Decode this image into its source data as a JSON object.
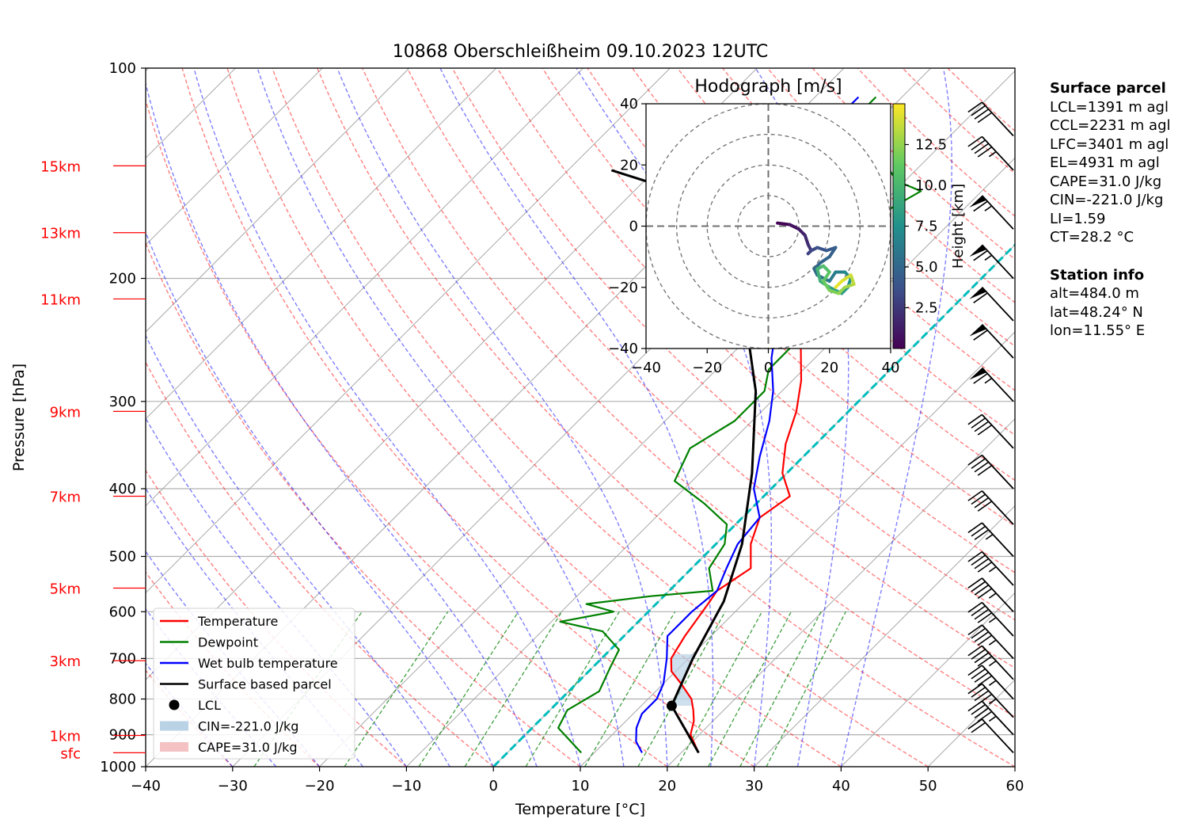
{
  "chart_data": [
    {
      "type": "line",
      "subtype": "skew-T log-p diagram",
      "title": "10868 Oberschleißheim 09.10.2023 12UTC",
      "xlabel": "Temperature [°C]",
      "ylabel": "Pressure [hPa]",
      "xlim": [
        -40,
        60
      ],
      "ylim": [
        1000,
        100
      ],
      "y_scale": "log",
      "x_ticks": [
        "−40",
        "−30",
        "−20",
        "−10",
        "0",
        "10",
        "20",
        "30",
        "40",
        "50",
        "60"
      ],
      "y_ticks": [
        "100",
        "200",
        "300",
        "400",
        "500",
        "600",
        "700",
        "800",
        "900",
        "1000"
      ],
      "height_labels": [
        {
          "label": "15km",
          "p": 138
        },
        {
          "label": "13km",
          "p": 172
        },
        {
          "label": "11km",
          "p": 214
        },
        {
          "label": "9km",
          "p": 310
        },
        {
          "label": "7km",
          "p": 410
        },
        {
          "label": "5km",
          "p": 555
        },
        {
          "label": "3km",
          "p": 705
        },
        {
          "label": "1km",
          "p": 902
        },
        {
          "label": "sfc",
          "p": 955
        }
      ],
      "legend": {
        "placement": "lower-left",
        "entries": [
          {
            "label": "Temperature",
            "kind": "line",
            "color": "#ff0000"
          },
          {
            "label": "Dewpoint",
            "kind": "line",
            "color": "#008000"
          },
          {
            "label": "Wet bulb temperature",
            "kind": "line",
            "color": "#0000ff"
          },
          {
            "label": "Surface based parcel",
            "kind": "line",
            "color": "#000000"
          },
          {
            "label": "LCL",
            "kind": "marker",
            "color": "#000000"
          },
          {
            "label": "CIN=-221.0 J/kg",
            "kind": "patch",
            "color": "#b9d2e6"
          },
          {
            "label": "CAPE=31.0 J/kg",
            "kind": "patch",
            "color": "#f4c2c2"
          }
        ]
      },
      "series": [
        {
          "name": "Temperature",
          "color": "#ff0000",
          "points": [
            [
              22,
              955
            ],
            [
              19,
              900
            ],
            [
              17.8,
              860
            ],
            [
              16.5,
              830
            ],
            [
              15,
              800
            ],
            [
              12,
              760
            ],
            [
              9.5,
              730
            ],
            [
              8,
              700
            ],
            [
              7,
              650
            ],
            [
              5.9,
              580
            ],
            [
              5.5,
              560
            ],
            [
              6.8,
              520
            ],
            [
              4,
              480
            ],
            [
              2,
              440
            ],
            [
              3,
              410
            ],
            [
              -0.5,
              380
            ],
            [
              -3.5,
              345
            ],
            [
              -6,
              310
            ],
            [
              -9,
              280
            ],
            [
              -13,
              250
            ],
            [
              -17,
              225
            ],
            [
              -21,
              205
            ],
            [
              -25,
              185
            ],
            [
              -29,
              170
            ],
            [
              -31,
              160
            ],
            [
              -33,
              148
            ],
            [
              -34,
              140
            ]
          ]
        },
        {
          "name": "Dewpoint",
          "color": "#008000",
          "points": [
            [
              8.5,
              955
            ],
            [
              6,
              920
            ],
            [
              3,
              880
            ],
            [
              2,
              830
            ],
            [
              3.5,
              780
            ],
            [
              2,
              720
            ],
            [
              1,
              680
            ],
            [
              -3,
              640
            ],
            [
              -9,
              620
            ],
            [
              -4,
              600
            ],
            [
              -8,
              585
            ],
            [
              -1.5,
              570
            ],
            [
              5,
              560
            ],
            [
              2,
              520
            ],
            [
              1,
              480
            ],
            [
              -1,
              450
            ],
            [
              -6,
              420
            ],
            [
              -12,
              390
            ],
            [
              -14,
              350
            ],
            [
              -12,
              320
            ],
            [
              -12,
              290
            ],
            [
              -14,
              270
            ],
            [
              -14,
              245
            ],
            [
              -16,
              220
            ],
            [
              -20,
              205
            ],
            [
              -25,
              190
            ],
            [
              -21,
              175
            ],
            [
              -19,
              162
            ],
            [
              -17,
              150
            ],
            [
              -21,
              145
            ],
            [
              -23,
              140
            ],
            [
              -25,
              135
            ],
            [
              -27,
              130
            ],
            [
              -30,
              125
            ],
            [
              -32,
              120
            ],
            [
              -33,
              115
            ],
            [
              -33,
              110
            ]
          ]
        },
        {
          "name": "Wet bulb temperature",
          "color": "#0000ff",
          "points": [
            [
              15.5,
              955
            ],
            [
              13.5,
              920
            ],
            [
              12,
              880
            ],
            [
              11,
              840
            ],
            [
              11,
              800
            ],
            [
              10,
              760
            ],
            [
              7.5,
              700
            ],
            [
              5,
              650
            ],
            [
              5,
              600
            ],
            [
              5.5,
              560
            ],
            [
              4,
              520
            ],
            [
              2.5,
              480
            ],
            [
              2,
              440
            ],
            [
              -2,
              400
            ],
            [
              -5,
              360
            ],
            [
              -8,
              320
            ],
            [
              -11,
              290
            ],
            [
              -15,
              260
            ],
            [
              -18,
              235
            ],
            [
              -22,
              215
            ],
            [
              -25,
              200
            ],
            [
              -26,
              185
            ],
            [
              -27,
              175
            ],
            [
              -27,
              165
            ],
            [
              -28,
              155
            ],
            [
              -29,
              145
            ],
            [
              -31,
              138
            ],
            [
              -33,
              130
            ],
            [
              -34,
              120
            ],
            [
              -35,
              115
            ],
            [
              -35,
              110
            ]
          ]
        },
        {
          "name": "Surface based parcel",
          "color": "#000000",
          "points": [
            [
              22,
              955
            ],
            [
              13.5,
              818
            ],
            [
              10.5,
              700
            ],
            [
              7.5,
              580
            ],
            [
              3,
              480
            ],
            [
              -4,
              380
            ],
            [
              -13,
              290
            ],
            [
              -24,
              220
            ],
            [
              -35,
              175
            ],
            [
              -45,
              150
            ],
            [
              -55,
              140
            ]
          ]
        }
      ],
      "lcl": {
        "label": "LCL",
        "t": 13.5,
        "p": 818
      },
      "cin_area": {
        "label": "CIN=-221.0 J/kg",
        "p_bottom": 818,
        "p_top": 690
      },
      "cape_label": "CAPE=31.0 J/kg",
      "freezing_level": {
        "t": 0,
        "color": "#00bcbc"
      },
      "wind_barbs": [
        {
          "p": 955,
          "speed_kt": 20
        },
        {
          "p": 900,
          "speed_kt": 45
        },
        {
          "p": 850,
          "speed_kt": 45
        },
        {
          "p": 800,
          "speed_kt": 45
        },
        {
          "p": 750,
          "speed_kt": 45
        },
        {
          "p": 700,
          "speed_kt": 45
        },
        {
          "p": 650,
          "speed_kt": 45
        },
        {
          "p": 600,
          "speed_kt": 45
        },
        {
          "p": 550,
          "speed_kt": 45
        },
        {
          "p": 500,
          "speed_kt": 35
        },
        {
          "p": 450,
          "speed_kt": 40
        },
        {
          "p": 400,
          "speed_kt": 40
        },
        {
          "p": 350,
          "speed_kt": 40
        },
        {
          "p": 300,
          "speed_kt": 65
        },
        {
          "p": 260,
          "speed_kt": 60
        },
        {
          "p": 230,
          "speed_kt": 60
        },
        {
          "p": 200,
          "speed_kt": 65
        },
        {
          "p": 170,
          "speed_kt": 65
        },
        {
          "p": 140,
          "speed_kt": 45
        },
        {
          "p": 125,
          "speed_kt": 40
        }
      ]
    },
    {
      "type": "line",
      "subtype": "hodograph",
      "title": "Hodograph [m/s]",
      "xlim": [
        -40,
        40
      ],
      "ylim": [
        -40,
        40
      ],
      "x_ticks": [
        "−40",
        "−20",
        "0",
        "20",
        "40"
      ],
      "y_ticks": [
        "40",
        "20",
        "0",
        "−20",
        "−40"
      ],
      "rings": [
        10,
        20,
        30,
        40
      ],
      "colorbar": {
        "label": "Height [km]",
        "ticks": [
          "2.5",
          "5.0",
          "7.5",
          "10.0",
          "12.5"
        ],
        "tick_values": [
          2.5,
          5.0,
          7.5,
          10.0,
          12.5
        ],
        "range": [
          0,
          15
        ],
        "colormap": "viridis"
      },
      "points": [
        [
          3,
          1,
          0.2
        ],
        [
          7,
          0.5,
          0.8
        ],
        [
          10,
          -1,
          1.3
        ],
        [
          12,
          -3,
          1.8
        ],
        [
          13,
          -6,
          2.2
        ],
        [
          14,
          -8,
          2.6
        ],
        [
          13,
          -9,
          3.0
        ],
        [
          14,
          -8,
          3.4
        ],
        [
          16,
          -7,
          3.8
        ],
        [
          19,
          -8,
          4.2
        ],
        [
          22,
          -7,
          4.6
        ],
        [
          20,
          -10,
          4.8
        ],
        [
          17,
          -12,
          5.0
        ],
        [
          15,
          -14,
          5.2
        ],
        [
          16,
          -16,
          5.5
        ],
        [
          18,
          -17,
          5.8
        ],
        [
          20,
          -18,
          6.1
        ],
        [
          22,
          -15,
          6.5
        ],
        [
          25,
          -15,
          7.0
        ],
        [
          27,
          -17,
          7.5
        ],
        [
          26,
          -20,
          8.0
        ],
        [
          24,
          -22,
          8.5
        ],
        [
          20,
          -20,
          9.0
        ],
        [
          17,
          -18,
          9.5
        ],
        [
          16,
          -14,
          10.0
        ],
        [
          18,
          -13,
          10.5
        ],
        [
          20,
          -15,
          11.0
        ],
        [
          18,
          -18,
          11.5
        ],
        [
          20,
          -21,
          12.0
        ],
        [
          23,
          -22,
          12.5
        ],
        [
          25,
          -20,
          13.0
        ],
        [
          28,
          -19,
          13.5
        ],
        [
          27,
          -16,
          14.0
        ],
        [
          24,
          -18,
          14.5
        ],
        [
          22,
          -20,
          15.0
        ]
      ]
    }
  ],
  "side_panel": {
    "surface_title": "Surface parcel",
    "surface_lines": [
      "LCL=1391 m agl",
      "CCL=2231 m agl",
      "LFC=3401 m agl",
      "EL=4931 m agl",
      "CAPE=31.0 J/kg",
      "CIN=-221.0 J/kg",
      "LI=1.59",
      "CT=28.2 °C"
    ],
    "station_title": "Station info",
    "station_lines": [
      "alt=484.0 m",
      "lat=48.24° N",
      "lon=11.55° E"
    ]
  }
}
